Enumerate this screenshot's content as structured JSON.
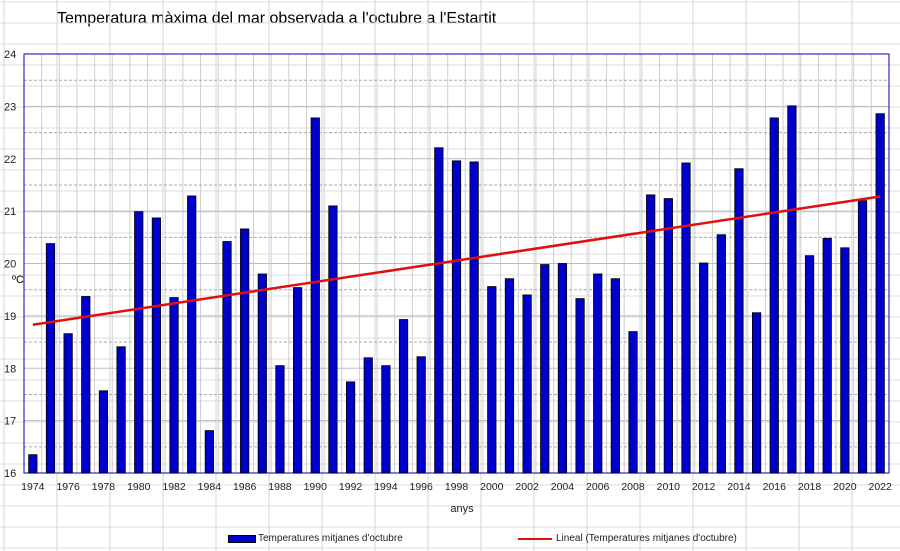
{
  "chart_data": {
    "type": "bar",
    "title": "Temperatura màxima del mar observada a l'octubre a l'Estartit",
    "xlabel": "anys",
    "ylabel": "ºC",
    "ylim": [
      16,
      24
    ],
    "yticks": [
      16,
      17,
      18,
      19,
      20,
      21,
      22,
      23,
      24
    ],
    "grid": true,
    "categories": [
      1974,
      1975,
      1976,
      1977,
      1978,
      1979,
      1980,
      1981,
      1982,
      1983,
      1984,
      1985,
      1986,
      1987,
      1988,
      1989,
      1990,
      1991,
      1992,
      1993,
      1994,
      1995,
      1996,
      1997,
      1998,
      1999,
      2000,
      2001,
      2002,
      2003,
      2004,
      2005,
      2006,
      2007,
      2008,
      2009,
      2010,
      2011,
      2012,
      2013,
      2014,
      2015,
      2016,
      2017,
      2018,
      2019,
      2020,
      2021,
      2022
    ],
    "xtick_labels": [
      "1974",
      "1976",
      "1978",
      "1980",
      "1982",
      "1984",
      "1986",
      "1988",
      "1990",
      "1992",
      "1994",
      "1996",
      "1998",
      "2000",
      "2002",
      "2004",
      "2006",
      "2008",
      "2010",
      "2012",
      "2014",
      "2016",
      "2018",
      "2020",
      "2022"
    ],
    "series": [
      {
        "name": "Temperatures mitjanes d'octubre",
        "type": "bar",
        "color": "#0000cc",
        "values": [
          16.35,
          20.38,
          18.66,
          19.37,
          17.57,
          18.41,
          20.99,
          20.87,
          19.35,
          21.29,
          16.81,
          20.42,
          20.66,
          19.8,
          18.05,
          19.54,
          22.78,
          21.1,
          17.74,
          18.2,
          18.05,
          18.93,
          18.22,
          22.21,
          21.96,
          21.94,
          19.56,
          19.71,
          19.4,
          19.98,
          20.0,
          19.33,
          19.8,
          19.71,
          18.7,
          21.31,
          21.24,
          21.92,
          20.01,
          20.55,
          21.81,
          19.06,
          22.78,
          23.01,
          20.15,
          20.48,
          20.3,
          21.2,
          22.86
        ]
      },
      {
        "name": "Lineal (Temperatures mitjanes d'octubre)",
        "type": "line",
        "color": "#e01010",
        "values_endpoints": {
          "1974": 18.83,
          "2022": 21.28
        }
      }
    ],
    "legend": "bottom"
  }
}
